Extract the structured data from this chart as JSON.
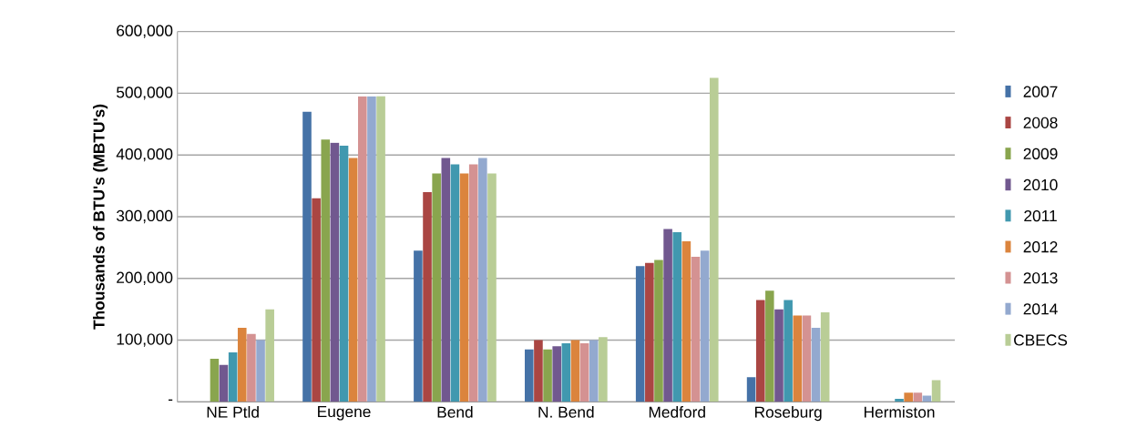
{
  "chart_data": {
    "type": "bar",
    "ylabel": "Thousands of BTU's (MBTU's)",
    "categories": [
      "NE Ptld",
      "Eugene",
      "Bend",
      "N. Bend",
      "Medford",
      "Roseburg",
      "Hermiston"
    ],
    "series": [
      {
        "name": "2007",
        "color": "#4572a7",
        "values": [
          null,
          470000,
          245000,
          85000,
          220000,
          40000,
          null
        ]
      },
      {
        "name": "2008",
        "color": "#aa4643",
        "values": [
          null,
          330000,
          340000,
          100000,
          225000,
          165000,
          null
        ]
      },
      {
        "name": "2009",
        "color": "#89a54e",
        "values": [
          70000,
          425000,
          370000,
          85000,
          230000,
          180000,
          null
        ]
      },
      {
        "name": "2010",
        "color": "#71588f",
        "values": [
          60000,
          420000,
          395000,
          90000,
          280000,
          150000,
          null
        ]
      },
      {
        "name": "2011",
        "color": "#4198af",
        "values": [
          80000,
          415000,
          385000,
          95000,
          275000,
          165000,
          5000
        ]
      },
      {
        "name": "2012",
        "color": "#db843d",
        "values": [
          120000,
          395000,
          370000,
          100000,
          260000,
          140000,
          15000
        ]
      },
      {
        "name": "2013",
        "color": "#d49292",
        "values": [
          110000,
          495000,
          385000,
          95000,
          235000,
          140000,
          15000
        ]
      },
      {
        "name": "2014",
        "color": "#93a9cf",
        "values": [
          100000,
          495000,
          395000,
          100000,
          245000,
          120000,
          10000
        ]
      },
      {
        "name": "CBECS",
        "color": "#b9cd96",
        "values": [
          150000,
          495000,
          370000,
          105000,
          525000,
          145000,
          35000
        ]
      }
    ],
    "ylim": [
      0,
      600000
    ],
    "yticks": [
      {
        "value": 0,
        "label": "-"
      },
      {
        "value": 100000,
        "label": "100,000"
      },
      {
        "value": 200000,
        "label": "200,000"
      },
      {
        "value": 300000,
        "label": "300,000"
      },
      {
        "value": 400000,
        "label": "400,000"
      },
      {
        "value": 500000,
        "label": "500,000"
      },
      {
        "value": 600000,
        "label": "600,000"
      }
    ],
    "grid": "y",
    "legend": "right"
  }
}
